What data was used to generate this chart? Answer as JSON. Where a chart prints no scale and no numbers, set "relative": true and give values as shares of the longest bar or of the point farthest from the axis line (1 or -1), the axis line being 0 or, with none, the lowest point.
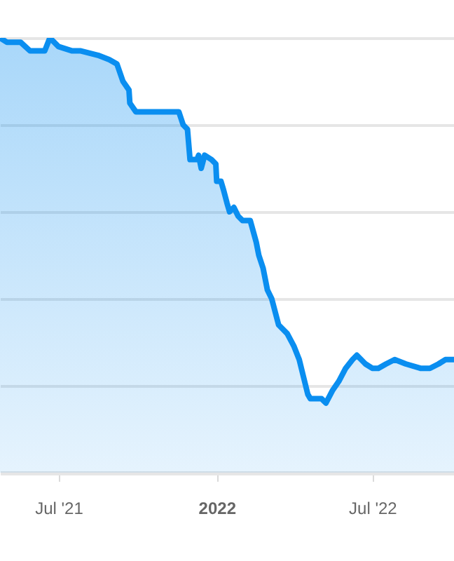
{
  "chart_data": {
    "type": "area",
    "relative": true,
    "grid": "y",
    "xlim": [
      "2021-04-24",
      "2022-10-04"
    ],
    "xticks": [
      {
        "value": "2021-07-01",
        "label": "Jul '21"
      },
      {
        "value": "2022-01-01",
        "label": "2022"
      },
      {
        "value": "2022-07-01",
        "label": "Jul '22"
      }
    ],
    "x": [
      "2021-04-24",
      "2021-05-02",
      "2021-05-18",
      "2021-05-29",
      "2021-06-15",
      "2021-06-21",
      "2021-07-01",
      "2021-07-17",
      "2021-07-27",
      "2021-08-16",
      "2021-08-29",
      "2021-09-07",
      "2021-09-14",
      "2021-09-21",
      "2021-09-22",
      "2021-09-29",
      "2021-10-12",
      "2021-10-31",
      "2021-11-18",
      "2021-11-23",
      "2021-11-28",
      "2021-12-01",
      "2021-12-09",
      "2021-12-11",
      "2021-12-14",
      "2021-12-18",
      "2021-12-26",
      "2021-12-31",
      "2022-01-01",
      "2022-01-06",
      "2022-01-09",
      "2022-01-13",
      "2022-01-16",
      "2022-01-21",
      "2022-01-26",
      "2022-01-31",
      "2022-02-09",
      "2022-02-16",
      "2022-02-19",
      "2022-02-24",
      "2022-03-01",
      "2022-03-06",
      "2022-03-14",
      "2022-03-24",
      "2022-04-01",
      "2022-04-07",
      "2022-04-12",
      "2022-04-17",
      "2022-04-20",
      "2022-04-27",
      "2022-05-03",
      "2022-05-08",
      "2022-05-16",
      "2022-05-23",
      "2022-05-31",
      "2022-06-08",
      "2022-06-13",
      "2022-06-18",
      "2022-06-23",
      "2022-07-01",
      "2022-07-08",
      "2022-07-17",
      "2022-07-27",
      "2022-08-09",
      "2022-08-26",
      "2022-09-06",
      "2022-09-16",
      "2022-09-24",
      "2022-10-04"
    ],
    "series": [
      {
        "color": "#0a8ef0",
        "values": [
          1.0,
          0.99,
          0.99,
          0.97,
          0.97,
          1.0,
          0.98,
          0.97,
          0.97,
          0.96,
          0.95,
          0.94,
          0.9,
          0.88,
          0.85,
          0.83,
          0.83,
          0.83,
          0.83,
          0.8,
          0.79,
          0.72,
          0.72,
          0.73,
          0.7,
          0.73,
          0.72,
          0.71,
          0.67,
          0.67,
          0.65,
          0.62,
          0.6,
          0.61,
          0.59,
          0.58,
          0.58,
          0.53,
          0.5,
          0.47,
          0.42,
          0.4,
          0.34,
          0.32,
          0.29,
          0.26,
          0.22,
          0.18,
          0.17,
          0.17,
          0.17,
          0.16,
          0.19,
          0.21,
          0.24,
          0.26,
          0.27,
          0.26,
          0.25,
          0.24,
          0.24,
          0.25,
          0.26,
          0.25,
          0.24,
          0.24,
          0.25,
          0.26,
          0.26
        ]
      }
    ]
  }
}
